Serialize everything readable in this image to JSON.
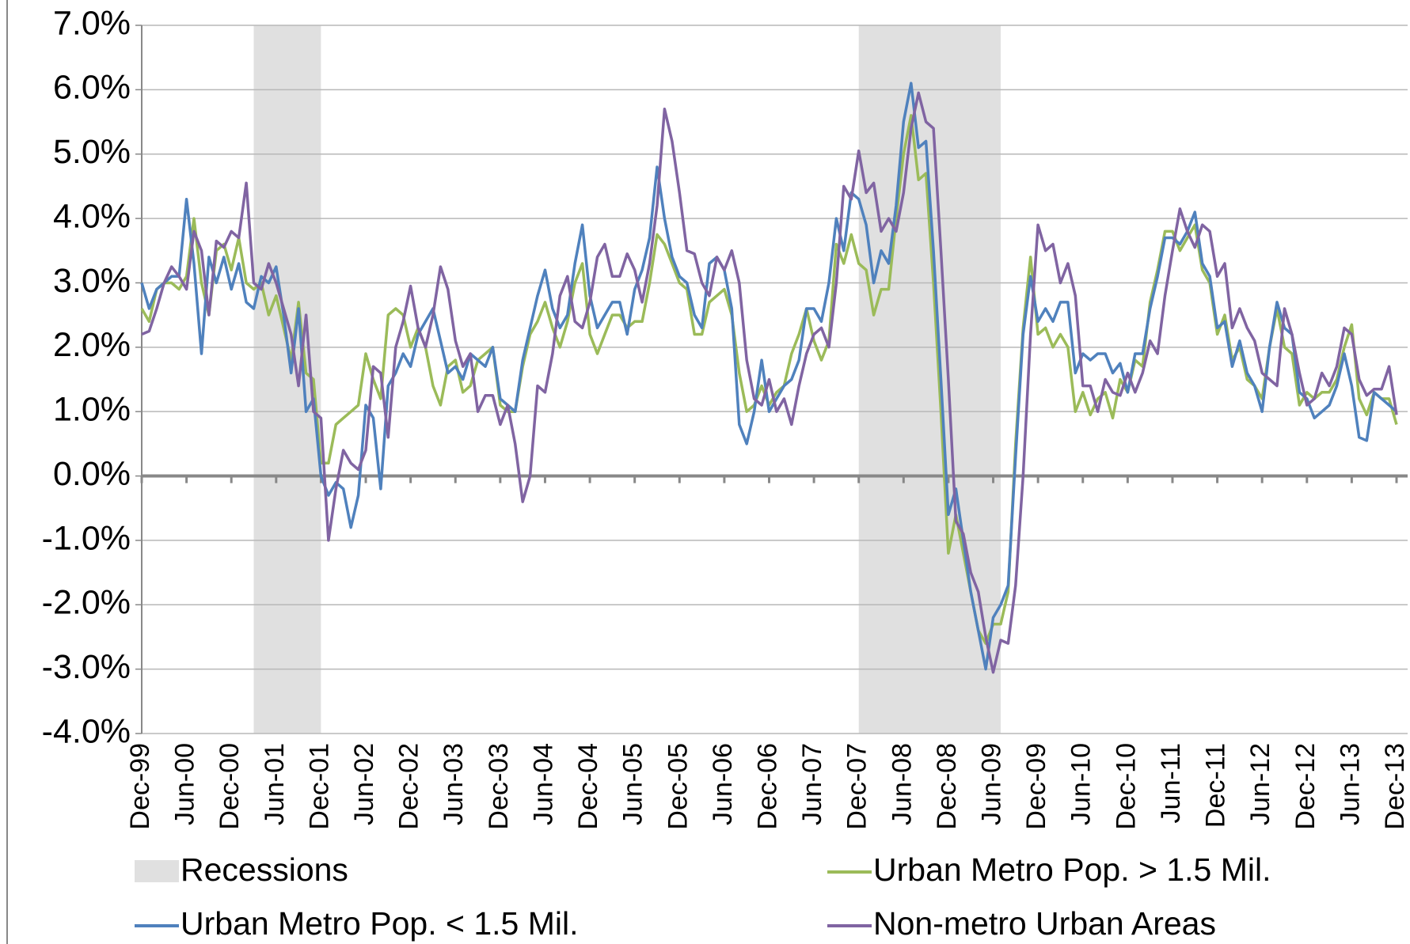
{
  "chart_data": {
    "type": "line",
    "categories": [
      "Dec-99",
      null,
      null,
      null,
      null,
      null,
      "Jun-00",
      null,
      null,
      null,
      null,
      null,
      "Dec-00",
      null,
      null,
      null,
      null,
      null,
      "Jun-01",
      null,
      null,
      null,
      null,
      null,
      "Dec-01",
      null,
      null,
      null,
      null,
      null,
      "Jun-02",
      null,
      null,
      null,
      null,
      null,
      "Dec-02",
      null,
      null,
      null,
      null,
      null,
      "Jun-03",
      null,
      null,
      null,
      null,
      null,
      "Dec-03",
      null,
      null,
      null,
      null,
      null,
      "Jun-04",
      null,
      null,
      null,
      null,
      null,
      "Dec-04",
      null,
      null,
      null,
      null,
      null,
      "Jun-05",
      null,
      null,
      null,
      null,
      null,
      "Dec-05",
      null,
      null,
      null,
      null,
      null,
      "Jun-06",
      null,
      null,
      null,
      null,
      null,
      "Dec-06",
      null,
      null,
      null,
      null,
      null,
      "Jun-07",
      null,
      null,
      null,
      null,
      null,
      "Dec-07",
      null,
      null,
      null,
      null,
      null,
      "Jun-08",
      null,
      null,
      null,
      null,
      null,
      "Dec-08",
      null,
      null,
      null,
      null,
      null,
      "Jun-09",
      null,
      null,
      null,
      null,
      null,
      "Dec-09",
      null,
      null,
      null,
      null,
      null,
      "Jun-10",
      null,
      null,
      null,
      null,
      null,
      "Dec-10",
      null,
      null,
      null,
      null,
      null,
      "Jun-11",
      null,
      null,
      null,
      null,
      null,
      "Dec-11",
      null,
      null,
      null,
      null,
      null,
      "Jun-12",
      null,
      null,
      null,
      null,
      null,
      "Dec-12",
      null,
      null,
      null,
      null,
      null,
      "Jun-13",
      null,
      null,
      null,
      null,
      null,
      "Dec-13"
    ],
    "recessions": {
      "name": "Recessions",
      "color": "#e0e0e0",
      "spans": [
        [
          15,
          24
        ],
        [
          96,
          115
        ]
      ]
    },
    "series": [
      {
        "name": "Urban Metro Pop. > 1.5 Mil.",
        "color": "#9bbb59",
        "values": [
          2.6,
          2.4,
          2.9,
          3.0,
          3.0,
          2.9,
          3.1,
          4.0,
          3.0,
          2.5,
          3.5,
          3.6,
          3.2,
          3.7,
          3.0,
          2.9,
          3.0,
          2.5,
          2.8,
          2.3,
          1.8,
          2.7,
          1.6,
          1.5,
          0.2,
          0.2,
          0.8,
          0.9,
          1.0,
          1.1,
          1.9,
          1.5,
          1.2,
          2.5,
          2.6,
          2.5,
          2.0,
          2.3,
          2.0,
          1.4,
          1.1,
          1.7,
          1.8,
          1.3,
          1.4,
          1.8,
          1.9,
          2.0,
          1.1,
          1.0,
          1.0,
          1.7,
          2.2,
          2.4,
          2.7,
          2.3,
          2.0,
          2.4,
          3.0,
          3.3,
          2.2,
          1.9,
          2.2,
          2.5,
          2.5,
          2.3,
          2.4,
          2.4,
          3.0,
          3.75,
          3.6,
          3.3,
          3.0,
          2.9,
          2.2,
          2.2,
          2.7,
          2.8,
          2.9,
          2.5,
          1.6,
          1.0,
          1.1,
          1.4,
          1.1,
          1.3,
          1.4,
          1.9,
          2.2,
          2.6,
          2.1,
          1.8,
          2.1,
          3.6,
          3.3,
          3.75,
          3.3,
          3.2,
          2.5,
          2.9,
          2.9,
          4.0,
          5.0,
          5.6,
          4.6,
          4.7,
          3.0,
          1.0,
          -1.2,
          -0.6,
          -1.2,
          -1.8,
          -2.4,
          -2.6,
          -2.3,
          -2.3,
          -1.8,
          0.5,
          2.3,
          3.4,
          2.2,
          2.3,
          2.0,
          2.2,
          2.0,
          1.0,
          1.3,
          0.95,
          1.2,
          1.3,
          0.9,
          1.5,
          1.3,
          1.8,
          1.7,
          2.7,
          3.2,
          3.8,
          3.8,
          3.5,
          3.7,
          3.9,
          3.2,
          3.0,
          2.2,
          2.5,
          1.8,
          2.0,
          1.5,
          1.4,
          1.2,
          2.0,
          2.6,
          2.0,
          1.9,
          1.1,
          1.3,
          1.2,
          1.3,
          1.3,
          1.5,
          2.0,
          2.35,
          1.2,
          0.95,
          1.3,
          1.2,
          1.2,
          0.8
        ]
      },
      {
        "name": "Urban Metro Pop. < 1.5 Mil.",
        "color": "#4f81bd",
        "values": [
          3.0,
          2.6,
          2.9,
          3.0,
          3.1,
          3.1,
          4.3,
          3.3,
          1.9,
          3.4,
          3.0,
          3.4,
          2.9,
          3.3,
          2.7,
          2.6,
          3.1,
          3.0,
          3.25,
          2.5,
          1.6,
          2.6,
          1.0,
          1.2,
          0.0,
          -0.3,
          -0.1,
          -0.2,
          -0.8,
          -0.3,
          1.1,
          0.9,
          -0.2,
          1.4,
          1.6,
          1.9,
          1.7,
          2.2,
          2.4,
          2.6,
          2.1,
          1.6,
          1.7,
          1.5,
          1.9,
          1.8,
          1.7,
          2.0,
          1.2,
          1.1,
          1.0,
          1.8,
          2.3,
          2.8,
          3.2,
          2.6,
          2.3,
          2.5,
          3.3,
          3.9,
          2.8,
          2.3,
          2.5,
          2.7,
          2.7,
          2.2,
          2.9,
          3.2,
          3.7,
          4.8,
          4.0,
          3.4,
          3.1,
          3.0,
          2.5,
          2.3,
          3.3,
          3.4,
          3.2,
          2.6,
          0.8,
          0.5,
          1.0,
          1.8,
          1.0,
          1.2,
          1.4,
          1.5,
          1.8,
          2.6,
          2.6,
          2.4,
          3.0,
          4.0,
          3.5,
          4.4,
          4.3,
          3.9,
          3.0,
          3.5,
          3.3,
          4.2,
          5.5,
          6.1,
          5.1,
          5.2,
          3.5,
          1.5,
          -0.6,
          -0.2,
          -1.0,
          -1.8,
          -2.4,
          -3.0,
          -2.2,
          -2.0,
          -1.7,
          0.3,
          2.2,
          3.1,
          2.4,
          2.6,
          2.4,
          2.7,
          2.7,
          1.6,
          1.9,
          1.8,
          1.9,
          1.9,
          1.6,
          1.75,
          1.3,
          1.9,
          1.9,
          2.6,
          3.1,
          3.7,
          3.7,
          3.6,
          3.8,
          4.1,
          3.3,
          3.1,
          2.3,
          2.4,
          1.7,
          2.1,
          1.6,
          1.4,
          1.0,
          2.0,
          2.7,
          2.3,
          2.2,
          1.3,
          1.2,
          0.9,
          1.0,
          1.1,
          1.4,
          1.9,
          1.4,
          0.6,
          0.55,
          1.3,
          1.2,
          1.1,
          1.0
        ]
      },
      {
        "name": "Non-metro Urban Areas",
        "color": "#8064a2",
        "values": [
          2.2,
          2.25,
          2.6,
          3.0,
          3.25,
          3.1,
          2.9,
          3.8,
          3.5,
          2.5,
          3.65,
          3.55,
          3.8,
          3.7,
          4.55,
          3.0,
          2.9,
          3.3,
          3.0,
          2.6,
          2.2,
          1.4,
          2.5,
          1.0,
          0.9,
          -1.0,
          -0.2,
          0.4,
          0.2,
          0.1,
          0.4,
          1.7,
          1.6,
          0.6,
          2.0,
          2.4,
          2.95,
          2.3,
          2.0,
          2.5,
          3.25,
          2.9,
          2.1,
          1.7,
          1.9,
          1.0,
          1.25,
          1.25,
          0.8,
          1.1,
          0.5,
          -0.4,
          0.0,
          1.4,
          1.3,
          1.9,
          2.8,
          3.1,
          2.4,
          2.3,
          2.7,
          3.4,
          3.6,
          3.1,
          3.1,
          3.45,
          3.2,
          2.7,
          3.3,
          4.2,
          5.7,
          5.2,
          4.4,
          3.5,
          3.45,
          3.0,
          2.8,
          3.4,
          3.2,
          3.5,
          3.0,
          1.8,
          1.2,
          1.1,
          1.5,
          1.0,
          1.2,
          0.8,
          1.4,
          1.9,
          2.2,
          2.3,
          2.0,
          3.0,
          4.5,
          4.3,
          5.05,
          4.4,
          4.55,
          3.8,
          4.0,
          3.8,
          4.4,
          5.4,
          5.95,
          5.5,
          5.4,
          3.5,
          1.5,
          -0.7,
          -0.9,
          -1.5,
          -1.8,
          -2.5,
          -3.05,
          -2.55,
          -2.6,
          -1.7,
          0.0,
          2.2,
          3.9,
          3.5,
          3.6,
          3.0,
          3.3,
          2.8,
          1.4,
          1.4,
          1.0,
          1.5,
          1.3,
          1.25,
          1.6,
          1.3,
          1.6,
          2.1,
          1.9,
          2.8,
          3.5,
          4.15,
          3.8,
          3.55,
          3.9,
          3.8,
          3.1,
          3.3,
          2.3,
          2.6,
          2.3,
          2.1,
          1.6,
          1.5,
          1.4,
          2.6,
          2.2,
          1.6,
          1.1,
          1.2,
          1.6,
          1.4,
          1.7,
          2.3,
          2.2,
          1.5,
          1.25,
          1.35,
          1.35,
          1.7,
          0.95
        ]
      }
    ],
    "ylim": [
      -4,
      7
    ],
    "yticks": [
      {
        "value": -4,
        "label": "-4.0%"
      },
      {
        "value": -3,
        "label": "-3.0%"
      },
      {
        "value": -2,
        "label": "-2.0%"
      },
      {
        "value": -1,
        "label": "-1.0%"
      },
      {
        "value": 0,
        "label": "0.0%"
      },
      {
        "value": 1,
        "label": "1.0%"
      },
      {
        "value": 2,
        "label": "2.0%"
      },
      {
        "value": 3,
        "label": "3.0%"
      },
      {
        "value": 4,
        "label": "4.0%"
      },
      {
        "value": 5,
        "label": "5.0%"
      },
      {
        "value": 6,
        "label": "6.0%"
      },
      {
        "value": 7,
        "label": "7.0%"
      }
    ],
    "grid": true
  }
}
